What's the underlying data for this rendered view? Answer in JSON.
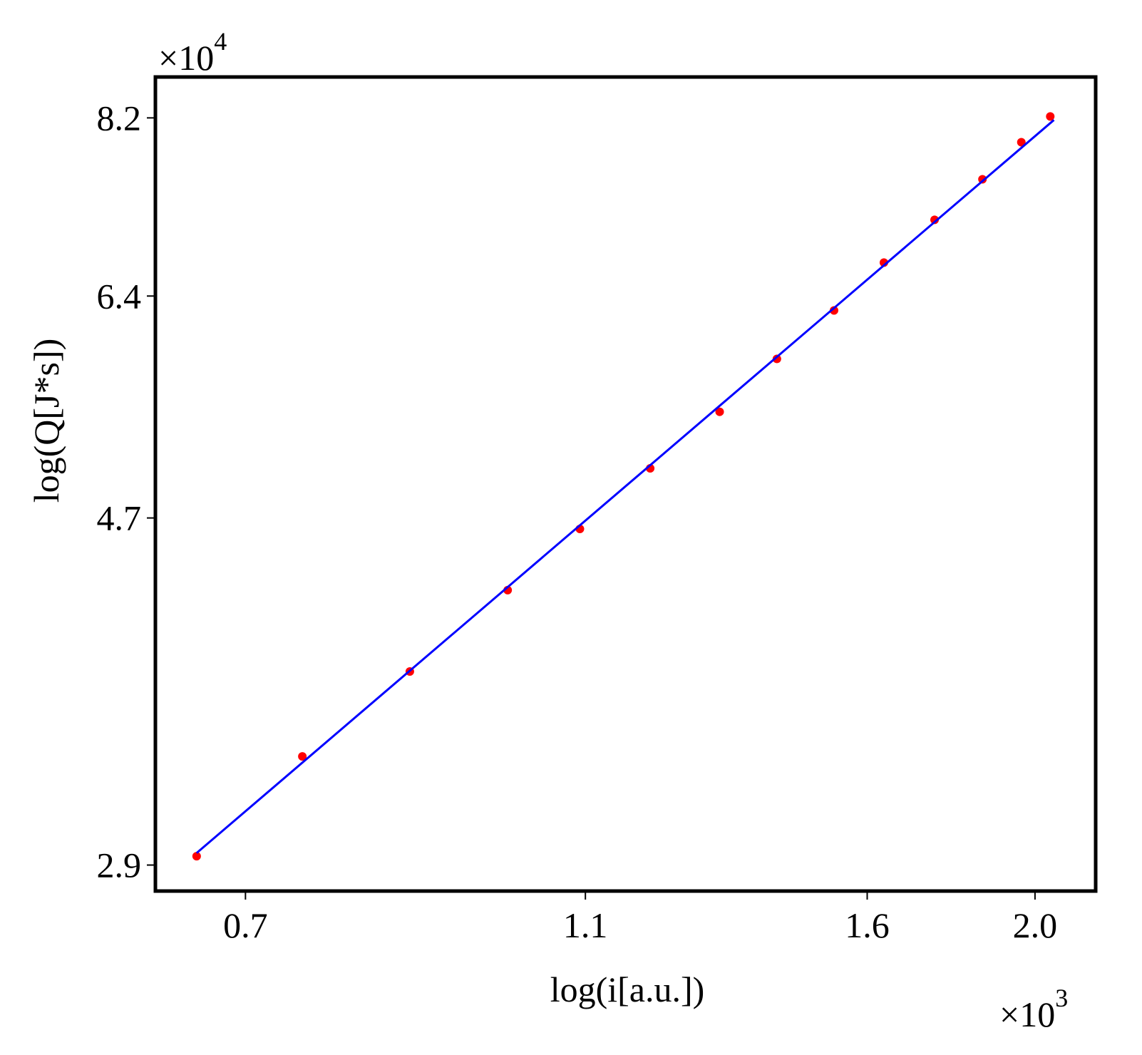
{
  "chart_data": {
    "type": "scatter",
    "x_label": "log(i[a.u.])",
    "y_label": "log(Q[J*s])",
    "x_multiplier": {
      "base": "×10",
      "exponent": "3"
    },
    "y_multiplier": {
      "base": "×10",
      "exponent": "4"
    },
    "log_x": true,
    "log_y": true,
    "xlim": [
      0.621,
      2.168
    ],
    "ylim": [
      2.797,
      8.68
    ],
    "xticks": [
      0.7,
      1.1,
      1.6,
      {
        "value": 2.0,
        "label": "2.0"
      }
    ],
    "yticks": [
      8.2,
      6.4,
      4.7,
      2.9
    ],
    "series": [
      {
        "type": "scatter",
        "color": "#ff0000",
        "x": [
          0.656,
          0.755,
          0.871,
          0.992,
          1.092,
          1.199,
          1.315,
          1.419,
          1.531,
          1.636,
          1.75,
          1.865,
          1.964,
          2.041
        ],
        "values": [
          2.936,
          3.373,
          3.796,
          4.251,
          4.629,
          5.036,
          5.448,
          5.864,
          6.273,
          6.705,
          7.116,
          7.529,
          7.927,
          8.216
        ]
      },
      {
        "type": "line",
        "color": "#0000ff",
        "x": [
          0.656,
          2.051
        ],
        "values": [
          2.949,
          8.176
        ]
      }
    ]
  }
}
